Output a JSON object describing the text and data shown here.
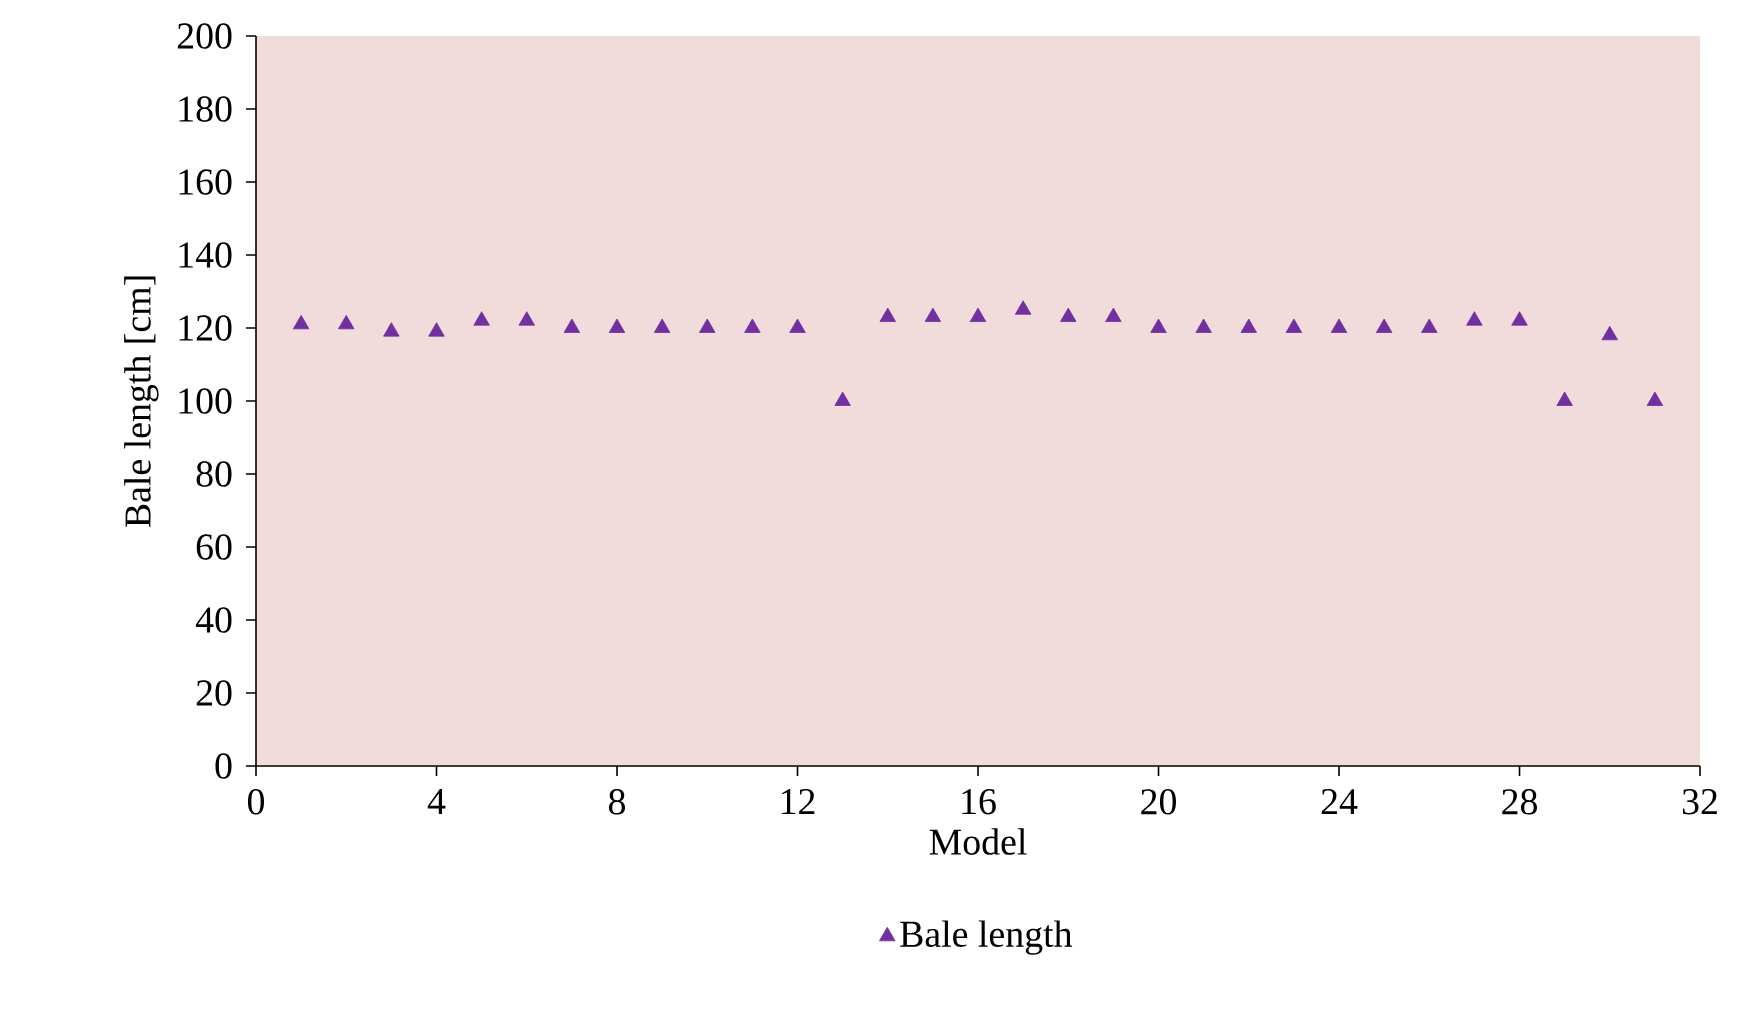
{
  "chart_data": {
    "type": "scatter",
    "xlabel": "Model",
    "ylabel": "Bale length [cm]",
    "x": [
      1,
      2,
      3,
      4,
      5,
      6,
      7,
      8,
      9,
      10,
      11,
      12,
      13,
      14,
      15,
      16,
      17,
      18,
      19,
      20,
      21,
      22,
      23,
      24,
      25,
      26,
      27,
      28,
      29,
      30,
      31
    ],
    "series": [
      {
        "name": "Bale length",
        "color": "#7030a0",
        "values": [
          121,
          121,
          119,
          119,
          122,
          122,
          120,
          120,
          120,
          120,
          120,
          120,
          100,
          123,
          123,
          123,
          125,
          123,
          123,
          120,
          120,
          120,
          120,
          120,
          120,
          120,
          122,
          122,
          100,
          118,
          100
        ]
      }
    ],
    "xlim": [
      0,
      32
    ],
    "xticks": [
      0,
      4,
      8,
      12,
      16,
      20,
      24,
      28,
      32
    ],
    "ylim": [
      0,
      200
    ],
    "yticks": [
      0,
      20,
      40,
      60,
      80,
      100,
      120,
      140,
      160,
      180,
      200
    ],
    "marker": "triangle",
    "legend": "bottom",
    "grid": false
  }
}
